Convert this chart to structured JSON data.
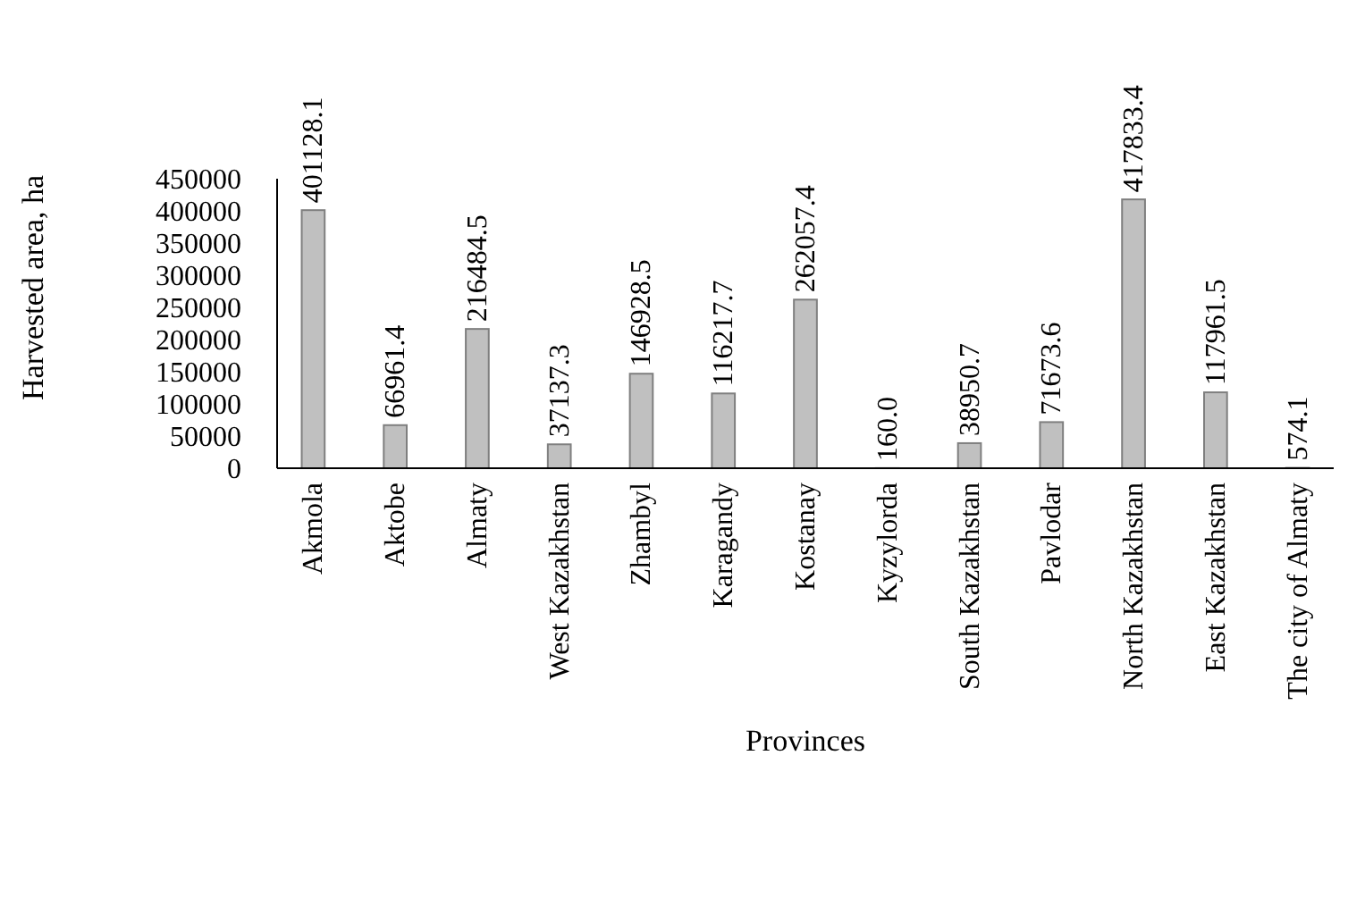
{
  "chart_data": {
    "type": "bar",
    "xlabel": "Provinces",
    "ylabel": "Harvested area, ha",
    "categories": [
      "Akmola",
      "Aktobe",
      "Almaty",
      "West Kazakhstan",
      "Zhambyl",
      "Karagandy",
      "Kostanay",
      "Kyzylorda",
      "South Kazakhstan",
      "Pavlodar",
      "North Kazakhstan",
      "East Kazakhstan",
      "The city of Almaty"
    ],
    "values": [
      401128.1,
      66961.4,
      216484.5,
      37137.3,
      146928.5,
      116217.7,
      262057.4,
      160.0,
      38950.7,
      71673.6,
      417833.4,
      117961.5,
      574.1
    ],
    "value_labels": [
      "401128.1",
      "66961.4",
      "216484.5",
      "37137.3",
      "146928.5",
      "116217.7",
      "262057.4",
      "160.0",
      "38950.7",
      "71673.6",
      "417833.4",
      "117961.5",
      "574.1"
    ],
    "color": "#c0c0c0",
    "ylim": [
      0,
      450000
    ],
    "yticks": [
      0,
      50000,
      100000,
      150000,
      200000,
      250000,
      300000,
      350000,
      400000,
      450000
    ],
    "grid": false
  }
}
